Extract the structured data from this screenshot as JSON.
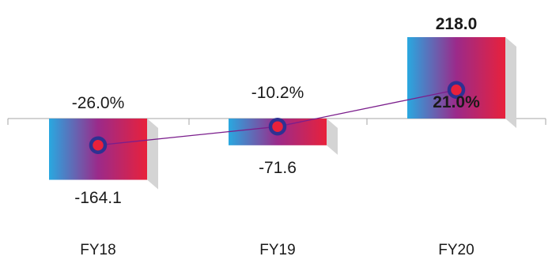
{
  "chart_data": {
    "type": "bar",
    "categories": [
      "FY18",
      "FY19",
      "FY20"
    ],
    "series": [
      {
        "values": [
          -164.1,
          -71.6,
          218.0
        ]
      },
      {
        "values": [
          -26.0,
          -10.2,
          21.0
        ]
      }
    ],
    "bar_labels": [
      "-164.1",
      "-71.6",
      "218.0"
    ],
    "line_labels": [
      "-26.0%",
      "-10.2%",
      "21.0%"
    ],
    "colors": {
      "bar_gradient_start": "#29a8e0",
      "bar_gradient_mid": "#9b2a8a",
      "bar_gradient_end": "#e8213b",
      "bar_shadow": "#d4d4d4",
      "line": "#7b1e8c",
      "marker_ring": "#2e3192",
      "marker_fill": "#e8213b",
      "axis": "#a6a6a6"
    },
    "grid": false,
    "legend": "none"
  }
}
